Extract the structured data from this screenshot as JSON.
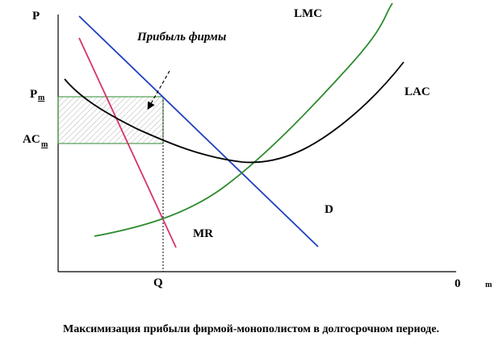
{
  "labels": {
    "y_axis": "P",
    "x_axis_origin": "0",
    "x_axis_sub": "m",
    "lmc": "LMC",
    "lac": "LAC",
    "demand": "D",
    "mr": "MR",
    "profit": "Прибыль фирмы",
    "pm_main": "P",
    "pm_sub": "m",
    "acm_main": "AC",
    "acm_sub": "m",
    "q": "Q"
  },
  "caption": "Максимизация прибыли фирмой-монополистом в долгосрочном периоде.",
  "colors": {
    "axes": "#000000",
    "lmc": "#2e8b2e",
    "lac": "#000000",
    "demand": "#1f3fbf",
    "mr": "#d6336c",
    "profit_box": "#2e8b2e",
    "hatch": "#bdbdbd"
  }
}
